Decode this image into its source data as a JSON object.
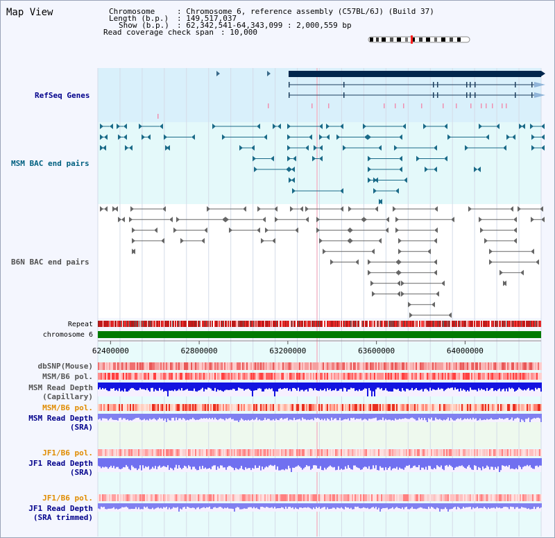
{
  "view": {
    "title": "Map View"
  },
  "info": {
    "chromosome_key": "Chromosome",
    "chromosome_value": ": Chromosome 6, reference assembly (C57BL/6J) (Build 37)",
    "length_key": "Length (b.p.)",
    "length_value": ": 149,517,037",
    "show_key": "Show (b.p.)",
    "show_value": ": 62,342,541-64,343,099 : 2,000,559 bp",
    "coverage_key": "Read coverage check span",
    "coverage_value": ": 10,000"
  },
  "tracks": {
    "refseq": "RefSeq Genes",
    "msm_bac": "MSM BAC end pairs",
    "b6n_bac": "B6N BAC end pairs",
    "repeat": "Repeat",
    "chromosome": "chromosome 6",
    "dbsnp": "dbSNP(Mouse)",
    "msm_b6_pol_1": "MSM/B6 pol.",
    "msm_depth_cap_1": "MSM Read Depth",
    "msm_depth_cap_2": "(Capillary)",
    "msm_b6_pol_2": "MSM/B6 pol.",
    "msm_depth_sra_1": "MSM Read Depth",
    "msm_depth_sra_2": "(SRA)",
    "jf1_b6_pol_1": "JF1/B6 pol.",
    "jf1_depth_sra_1": "JF1 Read Depth",
    "jf1_depth_sra_2": "(SRA)",
    "jf1_b6_pol_2": "JF1/B6 pol.",
    "jf1_depth_trim_1": "JF1 Read Depth",
    "jf1_depth_trim_2": "(SRA trimmed)"
  },
  "axis": {
    "ticks": [
      "62400000",
      "62800000",
      "63200000",
      "63600000",
      "64000000"
    ],
    "tick_values": [
      62400000,
      62800000,
      63200000,
      63600000,
      64000000
    ],
    "start": 62342541,
    "end": 64343099
  },
  "colors": {
    "refseq_label": "#00008b",
    "msm_label": "#006080",
    "b6n_label": "#505050",
    "pol_orange": "#e08c00",
    "depth_blue": "#0000cc",
    "chromosome_green": "#007a00",
    "refseq_bg": "#d9f0fb",
    "track_bg": "#e6fbfb"
  }
}
